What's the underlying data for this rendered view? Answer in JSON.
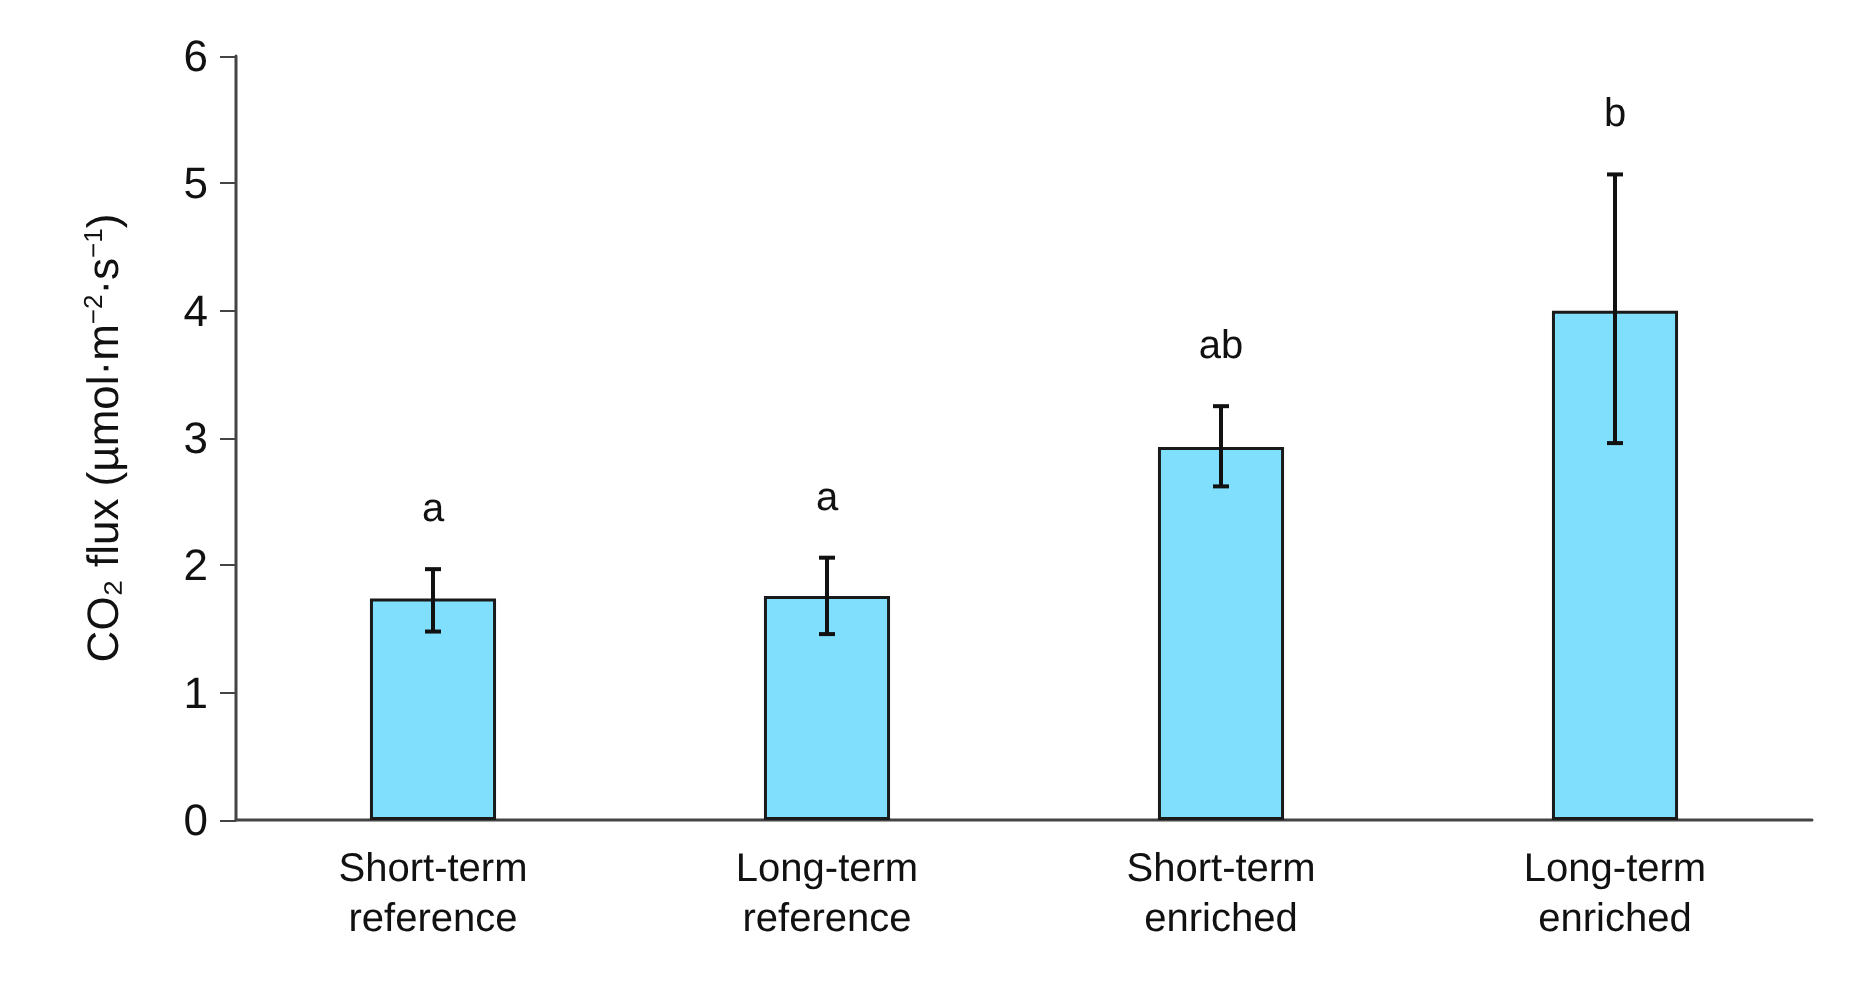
{
  "chart_data": {
    "type": "bar",
    "ylabel": "CO₂ flux (µmol·m$^{−2}$·s$^{−1}$)",
    "categories": [
      "Short-term reference",
      "Long-term reference",
      "Short-term enriched",
      "Long-term enriched"
    ],
    "values": [
      1.74,
      1.76,
      2.93,
      4.0
    ],
    "errors": [
      [
        1.48,
        1.97
      ],
      [
        1.46,
        2.06
      ],
      [
        2.62,
        3.25
      ],
      [
        2.96,
        5.07
      ]
    ],
    "color": "#80dffc",
    "ylim": [
      0,
      6
    ],
    "yticks": [
      0,
      1,
      2,
      3,
      4,
      5,
      6
    ],
    "grid": false,
    "annotations": [
      "a",
      "a",
      "ab",
      "b"
    ]
  }
}
